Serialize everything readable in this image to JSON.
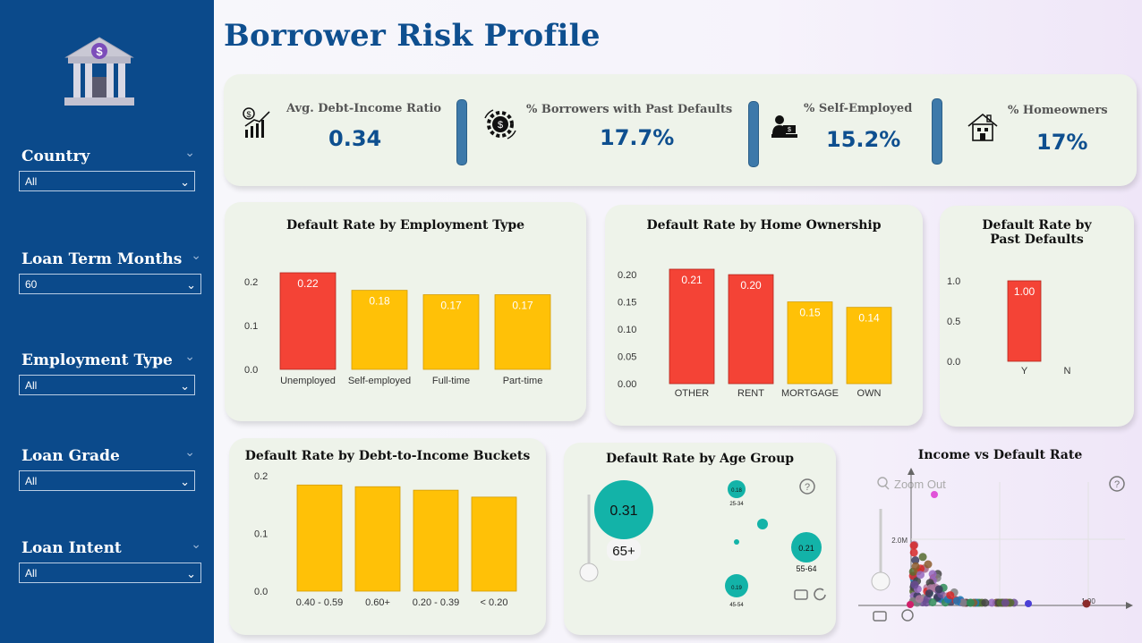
{
  "title": "Borrower Risk Profile",
  "filters": [
    {
      "label": "Country",
      "value": "All"
    },
    {
      "label": "Loan Term Months",
      "value": "60"
    },
    {
      "label": "Employment Type",
      "value": "All"
    },
    {
      "label": "Loan Grade",
      "value": "All"
    },
    {
      "label": "Loan Intent",
      "value": "All"
    }
  ],
  "kpis": [
    {
      "label": "Avg. Debt-Income Ratio",
      "value": "0.34",
      "icon": "chart-growth-icon"
    },
    {
      "label": "% Borrowers with Past Defaults",
      "value": "17.7%",
      "icon": "gear-dollar-icon"
    },
    {
      "label": "% Self-Employed",
      "value": "15.2%",
      "icon": "person-desk-icon"
    },
    {
      "label": "% Homeowners",
      "value": "17%",
      "icon": "house-icon"
    }
  ],
  "colors": {
    "high": "#f44336",
    "normal": "#ffc107",
    "bubble": "#13b3a8",
    "sidebar": "#0b4a8b",
    "title": "#0e4f8f"
  },
  "chart_data": [
    {
      "type": "bar",
      "title": "Default Rate by Employment Type",
      "categories": [
        "Unemployed",
        "Self-employed",
        "Full-time",
        "Part-time"
      ],
      "values": [
        0.22,
        0.18,
        0.17,
        0.17
      ],
      "labels": [
        "0.22",
        "0.18",
        "0.17",
        "0.17"
      ],
      "highlight": [
        true,
        false,
        false,
        false
      ],
      "yticks": [
        "0.0",
        "0.1",
        "0.2"
      ],
      "ylim": [
        0,
        0.22
      ]
    },
    {
      "type": "bar",
      "title": "Default Rate by Home Ownership",
      "categories": [
        "OTHER",
        "RENT",
        "MORTGAGE",
        "OWN"
      ],
      "values": [
        0.21,
        0.2,
        0.15,
        0.14
      ],
      "labels": [
        "0.21",
        "0.20",
        "0.15",
        "0.14"
      ],
      "highlight": [
        true,
        true,
        false,
        false
      ],
      "yticks": [
        "0.00",
        "0.05",
        "0.10",
        "0.15",
        "0.20"
      ],
      "ylim": [
        0,
        0.21
      ]
    },
    {
      "type": "bar",
      "title": "Default Rate by Past Defaults",
      "categories": [
        "Y",
        "N"
      ],
      "values": [
        1.0,
        0
      ],
      "labels": [
        "1.00",
        ""
      ],
      "highlight": [
        true,
        false
      ],
      "yticks": [
        "0.0",
        "0.5",
        "1.0"
      ],
      "ylim": [
        0,
        1.0
      ]
    },
    {
      "type": "bar",
      "title": "Default Rate by Debt-to-Income Buckets",
      "categories": [
        "0.40 - 0.59",
        "0.60+",
        "0.20 - 0.39",
        "< 0.20"
      ],
      "values": [
        0.184,
        0.181,
        0.175,
        0.163
      ],
      "labels": [
        "",
        "",
        "",
        ""
      ],
      "highlight": [
        false,
        false,
        false,
        false
      ],
      "yticks": [
        "0.0",
        "0.1",
        "0.2"
      ],
      "ylim": [
        0,
        0.2
      ]
    },
    {
      "type": "scatter",
      "title": "Default Rate by Age Group",
      "bubbles": [
        {
          "label": "0.31",
          "group": "65+"
        },
        {
          "label": "0.18",
          "group": "25-34"
        },
        {
          "label": "0.21",
          "group": "55-64"
        },
        {
          "label": "0.19",
          "group": "45-54"
        }
      ]
    },
    {
      "type": "scatter",
      "title": "Income vs Default Rate",
      "yticks": [
        "2.0M"
      ],
      "xticks": [
        "1.00"
      ],
      "zoom_label": "Zoom Out"
    }
  ]
}
